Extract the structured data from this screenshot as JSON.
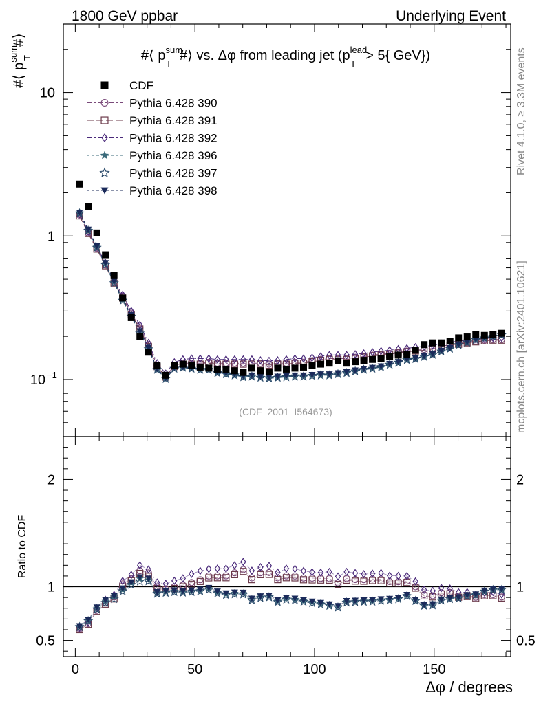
{
  "header": {
    "left": "1800 GeV ppbar",
    "right": "Underlying Event"
  },
  "side_labels": {
    "rivet": "Rivet 4.1.0, ≥ 3.3M events",
    "mcplots": "mcplots.cern.ch [arXiv:2401.10621]"
  },
  "colors": {
    "cdf": "#000000",
    "p390": "#7a4a7a",
    "p391": "#6b3a4a",
    "p392": "#4a2a7a",
    "p396": "#3a6a7a",
    "p397": "#2a4a6a",
    "p398": "#1a2a5a"
  },
  "chart_data": {
    "type": "scatter",
    "title": "#⟨ p_T^sum #⟩ vs. Δφ from leading jet  (p_T^lead > 5{ GeV})",
    "title_parts": {
      "pre": "#⟨ p",
      "sup1": "sum",
      "sub1": "T",
      "mid": "#⟩ vs. Δφ from leading jet  (p",
      "sup2": "lead",
      "sub2": "T",
      "post": "> 5{ GeV})"
    },
    "ylabel_parts": {
      "pre": "#⟨ p",
      "sup": "sum",
      "sub": "T",
      "post": "#⟩"
    },
    "xlabel": "Δφ / degrees",
    "ratio_ylabel": "Ratio to CDF",
    "watermark": "(CDF_2001_I564673)",
    "xlim": [
      -5,
      182
    ],
    "ylim": [
      0.04,
      30
    ],
    "yscale": "log",
    "ratio_ylim": [
      0.35,
      2.4
    ],
    "x_ticks": [
      0,
      50,
      100,
      150
    ],
    "y_tick_labels": [
      {
        "value": 10,
        "label": "10"
      },
      {
        "value": 1,
        "label": "1"
      },
      {
        "value": 0.1,
        "label": "10",
        "exp": "−1"
      }
    ],
    "ratio_ticks": [
      {
        "value": 2,
        "label": "2"
      },
      {
        "value": 1,
        "label": "1"
      },
      {
        "value": 0.5,
        "label": "0.5"
      }
    ],
    "x": [
      1.8,
      5.4,
      9,
      12.6,
      16.2,
      19.8,
      23.4,
      27,
      30.6,
      34.2,
      37.8,
      41.4,
      45,
      48.6,
      52.2,
      55.8,
      59.4,
      63,
      66.6,
      70.2,
      73.8,
      77.4,
      81,
      84.6,
      88.2,
      91.8,
      95.4,
      99,
      102.6,
      106.2,
      109.8,
      113.4,
      117,
      120.6,
      124.2,
      127.8,
      131.4,
      135,
      138.6,
      142.2,
      145.8,
      149.4,
      153,
      156.6,
      160.2,
      163.8,
      167.4,
      171,
      174.6,
      178.2
    ],
    "series": [
      {
        "name": "CDF",
        "marker": "filled-square",
        "color_key": "cdf",
        "values": [
          2.3,
          1.6,
          1.05,
          0.74,
          0.53,
          0.37,
          0.27,
          0.2,
          0.155,
          0.125,
          0.107,
          0.125,
          0.128,
          0.125,
          0.122,
          0.12,
          0.118,
          0.118,
          0.115,
          0.112,
          0.12,
          0.115,
          0.113,
          0.12,
          0.118,
          0.12,
          0.122,
          0.125,
          0.128,
          0.13,
          0.135,
          0.13,
          0.133,
          0.136,
          0.138,
          0.14,
          0.145,
          0.148,
          0.15,
          0.16,
          0.175,
          0.18,
          0.18,
          0.185,
          0.195,
          0.198,
          0.205,
          0.203,
          0.205,
          0.21
        ]
      },
      {
        "name": "Pythia 6.428 390",
        "marker": "open-circle",
        "color_key": "p390",
        "dash": "8,3,2,3",
        "values": [
          1.4,
          1.05,
          0.82,
          0.63,
          0.48,
          0.38,
          0.29,
          0.23,
          0.175,
          0.125,
          0.105,
          0.125,
          0.13,
          0.13,
          0.13,
          0.132,
          0.13,
          0.13,
          0.13,
          0.13,
          0.13,
          0.13,
          0.128,
          0.13,
          0.13,
          0.132,
          0.132,
          0.135,
          0.138,
          0.14,
          0.14,
          0.14,
          0.142,
          0.145,
          0.148,
          0.15,
          0.152,
          0.155,
          0.158,
          0.16,
          0.162,
          0.165,
          0.17,
          0.175,
          0.178,
          0.182,
          0.185,
          0.188,
          0.19,
          0.19
        ]
      },
      {
        "name": "Pythia 6.428 391",
        "marker": "open-square",
        "color_key": "p391",
        "dash": "10,4",
        "values": [
          1.38,
          1.04,
          0.81,
          0.62,
          0.47,
          0.37,
          0.285,
          0.225,
          0.17,
          0.123,
          0.104,
          0.123,
          0.128,
          0.128,
          0.128,
          0.13,
          0.128,
          0.128,
          0.128,
          0.128,
          0.128,
          0.128,
          0.126,
          0.128,
          0.128,
          0.13,
          0.13,
          0.133,
          0.136,
          0.138,
          0.138,
          0.138,
          0.14,
          0.143,
          0.146,
          0.148,
          0.15,
          0.153,
          0.156,
          0.158,
          0.16,
          0.163,
          0.168,
          0.173,
          0.176,
          0.18,
          0.183,
          0.186,
          0.188,
          0.188
        ]
      },
      {
        "name": "Pythia 6.428 392",
        "marker": "open-diamond",
        "color_key": "p392",
        "dash": "8,3,2,3",
        "values": [
          1.42,
          1.07,
          0.84,
          0.65,
          0.49,
          0.39,
          0.3,
          0.24,
          0.18,
          0.13,
          0.11,
          0.132,
          0.138,
          0.14,
          0.14,
          0.14,
          0.138,
          0.138,
          0.138,
          0.138,
          0.138,
          0.136,
          0.135,
          0.136,
          0.138,
          0.14,
          0.14,
          0.142,
          0.145,
          0.148,
          0.148,
          0.148,
          0.15,
          0.152,
          0.155,
          0.158,
          0.16,
          0.163,
          0.165,
          0.168,
          0.17,
          0.173,
          0.178,
          0.182,
          0.185,
          0.188,
          0.19,
          0.192,
          0.195,
          0.195
        ]
      },
      {
        "name": "Pythia 6.428 396",
        "marker": "filled-star",
        "color_key": "p396",
        "dash": "4,3",
        "values": [
          1.45,
          1.1,
          0.84,
          0.64,
          0.48,
          0.36,
          0.28,
          0.215,
          0.165,
          0.118,
          0.102,
          0.12,
          0.122,
          0.12,
          0.118,
          0.118,
          0.112,
          0.11,
          0.108,
          0.105,
          0.106,
          0.104,
          0.103,
          0.104,
          0.105,
          0.106,
          0.106,
          0.107,
          0.108,
          0.108,
          0.11,
          0.112,
          0.115,
          0.118,
          0.12,
          0.123,
          0.128,
          0.132,
          0.138,
          0.14,
          0.145,
          0.15,
          0.158,
          0.165,
          0.175,
          0.182,
          0.19,
          0.195,
          0.2,
          0.205
        ]
      },
      {
        "name": "Pythia 6.428 397",
        "marker": "open-star",
        "color_key": "p397",
        "dash": "4,3",
        "values": [
          1.44,
          1.09,
          0.83,
          0.63,
          0.47,
          0.355,
          0.275,
          0.21,
          0.163,
          0.117,
          0.101,
          0.119,
          0.121,
          0.119,
          0.117,
          0.117,
          0.111,
          0.109,
          0.107,
          0.104,
          0.105,
          0.103,
          0.102,
          0.103,
          0.104,
          0.105,
          0.105,
          0.106,
          0.107,
          0.107,
          0.109,
          0.111,
          0.114,
          0.117,
          0.119,
          0.122,
          0.127,
          0.131,
          0.137,
          0.139,
          0.144,
          0.149,
          0.157,
          0.164,
          0.174,
          0.181,
          0.189,
          0.194,
          0.199,
          0.204
        ]
      },
      {
        "name": "Pythia 6.428 398",
        "marker": "filled-triangle-down",
        "color_key": "p398",
        "dash": "4,3",
        "values": [
          1.46,
          1.11,
          0.85,
          0.65,
          0.485,
          0.365,
          0.282,
          0.218,
          0.167,
          0.119,
          0.103,
          0.121,
          0.123,
          0.121,
          0.119,
          0.119,
          0.113,
          0.111,
          0.109,
          0.106,
          0.107,
          0.105,
          0.104,
          0.105,
          0.106,
          0.107,
          0.107,
          0.108,
          0.109,
          0.109,
          0.111,
          0.113,
          0.116,
          0.119,
          0.121,
          0.124,
          0.129,
          0.133,
          0.139,
          0.141,
          0.146,
          0.151,
          0.159,
          0.166,
          0.176,
          0.183,
          0.191,
          0.196,
          0.201,
          0.206
        ]
      }
    ],
    "legend_position": "top-left"
  }
}
